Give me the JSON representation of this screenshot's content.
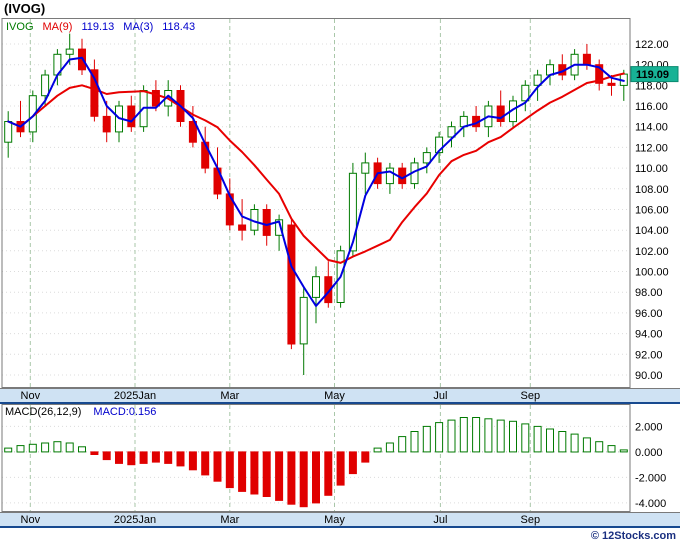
{
  "title": "(IVOG)",
  "copyright": "© 12Stocks.com",
  "legend": {
    "parts": [
      {
        "text": "IVOG",
        "color": "#007a00"
      },
      {
        "text": "MA(9)",
        "color": "#e00000"
      },
      {
        "text": "119.13",
        "color": "#0000cc"
      },
      {
        "text": "MA(3)",
        "color": "#0000cc"
      },
      {
        "text": "118.43",
        "color": "#0000cc"
      }
    ]
  },
  "colors": {
    "up": "#007a00",
    "down": "#e00000",
    "ma9": "#e80000",
    "ma3": "#0000e0",
    "badge_bg": "#17b295",
    "badge_border": "#0b8a70",
    "badge_text": "#000000",
    "band_bg": "#cfe2f3",
    "band_border": "#17498f",
    "grid_v": "#a9c7a9",
    "grid_h": "#dcdcdc",
    "border": "#7a7a7a",
    "macd_label": "#000000",
    "macd_value": "#0000cc",
    "copyright": "#1a2f80"
  },
  "chart_data": [
    {
      "type": "candlestick",
      "symbol": "IVOG",
      "last_price": "119.09",
      "ma_overlays": [
        {
          "name": "MA(9)",
          "period": 9,
          "last_value": 119.13,
          "color": "#e80000"
        },
        {
          "name": "MA(3)",
          "period": 3,
          "last_value": 118.43,
          "color": "#0000e0"
        }
      ],
      "ylim": [
        88.74,
        124.51
      ],
      "yticks": [
        122,
        120,
        118,
        116,
        114,
        112,
        110,
        108,
        106,
        104,
        102,
        100,
        98,
        96,
        94,
        92,
        90
      ],
      "x_ticks": [
        {
          "label": "Nov",
          "i": 1.8
        },
        {
          "label": "2025Jan",
          "i": 10.3
        },
        {
          "label": "Mar",
          "i": 18.0
        },
        {
          "label": "May",
          "i": 26.5
        },
        {
          "label": "Jul",
          "i": 35.1
        },
        {
          "label": "Sep",
          "i": 42.4
        }
      ],
      "ohlc": [
        [
          112.5,
          115.5,
          111.0,
          114.5
        ],
        [
          114.5,
          116.5,
          113.0,
          113.5
        ],
        [
          113.5,
          117.5,
          112.5,
          117.0
        ],
        [
          117.0,
          119.5,
          116.0,
          119.0
        ],
        [
          119.0,
          121.5,
          118.0,
          121.0
        ],
        [
          121.0,
          123.0,
          120.0,
          121.5
        ],
        [
          121.5,
          122.5,
          119.0,
          119.5
        ],
        [
          119.5,
          120.5,
          114.5,
          115.0
        ],
        [
          115.0,
          116.5,
          112.5,
          113.5
        ],
        [
          113.5,
          116.5,
          112.5,
          116.0
        ],
        [
          116.0,
          117.0,
          113.5,
          114.0
        ],
        [
          114.0,
          118.0,
          113.5,
          117.5
        ],
        [
          117.5,
          118.5,
          115.5,
          116.0
        ],
        [
          116.0,
          118.5,
          115.0,
          117.5
        ],
        [
          117.5,
          118.0,
          114.0,
          114.5
        ],
        [
          114.5,
          116.0,
          112.0,
          112.5
        ],
        [
          112.5,
          114.0,
          109.5,
          110.0
        ],
        [
          110.0,
          112.0,
          107.0,
          107.5
        ],
        [
          107.5,
          109.0,
          104.0,
          104.5
        ],
        [
          104.5,
          107.0,
          103.0,
          104.0
        ],
        [
          104.0,
          106.5,
          103.5,
          106.0
        ],
        [
          106.0,
          106.5,
          102.5,
          103.5
        ],
        [
          103.5,
          105.5,
          102.0,
          105.0
        ],
        [
          104.5,
          105.0,
          92.5,
          93.0
        ],
        [
          93.0,
          98.5,
          90.0,
          97.5
        ],
        [
          97.5,
          100.5,
          95.0,
          99.5
        ],
        [
          99.5,
          101.0,
          96.5,
          97.0
        ],
        [
          97.0,
          102.5,
          96.5,
          102.0
        ],
        [
          102.0,
          110.5,
          101.5,
          109.5
        ],
        [
          109.5,
          111.5,
          107.5,
          110.5
        ],
        [
          110.5,
          111.0,
          108.0,
          108.5
        ],
        [
          108.5,
          110.5,
          107.5,
          110.0
        ],
        [
          110.0,
          110.5,
          108.0,
          108.5
        ],
        [
          108.5,
          111.0,
          108.0,
          110.5
        ],
        [
          110.5,
          112.0,
          109.5,
          111.5
        ],
        [
          111.5,
          113.5,
          110.5,
          113.0
        ],
        [
          113.0,
          114.5,
          112.0,
          114.0
        ],
        [
          114.0,
          115.5,
          113.0,
          115.0
        ],
        [
          115.0,
          116.0,
          113.5,
          114.0
        ],
        [
          114.0,
          116.5,
          113.0,
          116.0
        ],
        [
          116.0,
          117.5,
          114.0,
          114.5
        ],
        [
          114.5,
          117.0,
          114.0,
          116.5
        ],
        [
          116.5,
          118.5,
          115.5,
          118.0
        ],
        [
          118.0,
          119.5,
          116.5,
          119.0
        ],
        [
          119.0,
          120.5,
          118.0,
          120.0
        ],
        [
          120.0,
          121.0,
          118.5,
          119.0
        ],
        [
          119.0,
          121.5,
          118.5,
          121.0
        ],
        [
          121.0,
          122.0,
          119.5,
          120.0
        ],
        [
          120.0,
          120.5,
          117.5,
          118.2
        ],
        [
          118.2,
          119.0,
          117.0,
          118.0
        ],
        [
          118.0,
          119.5,
          116.5,
          119.09
        ]
      ]
    },
    {
      "type": "bar",
      "title": "MACD(26,12,9)",
      "value_label": "MACD:0.156",
      "last_value": 0.156,
      "ylim": [
        -4.71,
        3.76
      ],
      "yticks": [
        2,
        0,
        -2,
        -4
      ],
      "values": [
        0.3,
        0.5,
        0.6,
        0.7,
        0.8,
        0.7,
        0.4,
        -0.2,
        -0.6,
        -0.9,
        -1.0,
        -0.9,
        -0.8,
        -0.9,
        -1.1,
        -1.4,
        -1.8,
        -2.3,
        -2.8,
        -3.1,
        -3.3,
        -3.5,
        -3.8,
        -4.1,
        -4.3,
        -4.0,
        -3.4,
        -2.6,
        -1.7,
        -0.8,
        0.3,
        0.7,
        1.2,
        1.6,
        2.0,
        2.3,
        2.5,
        2.7,
        2.7,
        2.6,
        2.5,
        2.4,
        2.2,
        2.0,
        1.8,
        1.6,
        1.4,
        1.1,
        0.8,
        0.5,
        0.16
      ]
    }
  ]
}
